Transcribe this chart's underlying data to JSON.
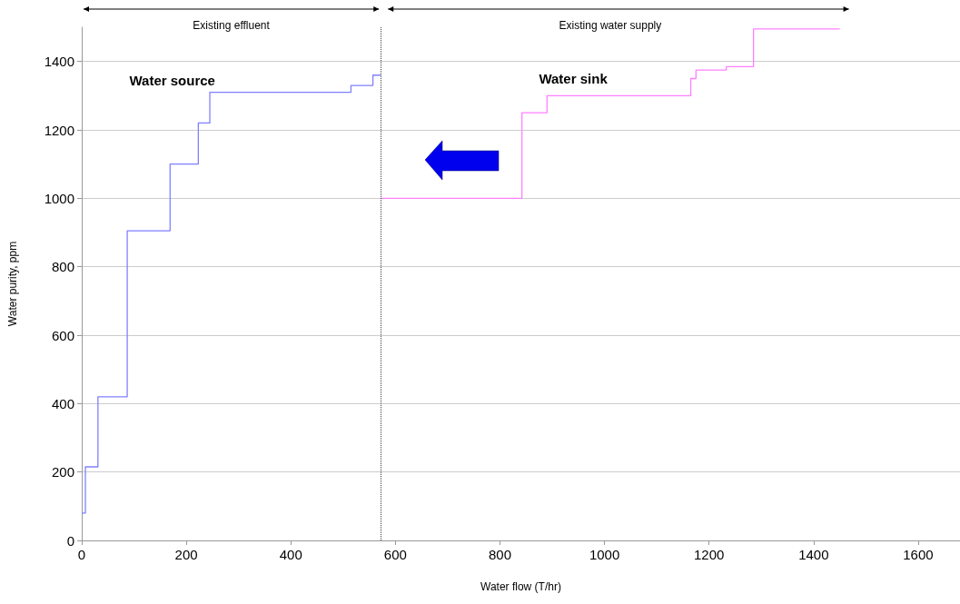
{
  "chart_data": {
    "type": "step",
    "xlabel": "Water flow (T/hr)",
    "ylabel": "Water purity, ppm",
    "series": [
      {
        "color": "#8080ff",
        "x": [
          0,
          7,
          31,
          87,
          169,
          223,
          245,
          515,
          557,
          572
        ],
        "values": [
          80,
          215,
          420,
          905,
          1100,
          1220,
          1310,
          1330,
          1360,
          1360
        ]
      },
      {
        "color": "#ff80ff",
        "x": [
          572,
          842,
          890,
          1165,
          1175,
          1233,
          1285,
          1450
        ],
        "values": [
          1000,
          1250,
          1300,
          1350,
          1375,
          1385,
          1495,
          1495
        ]
      }
    ],
    "annotations": [
      "Existing effluent",
      "Existing water supply",
      "Water source",
      "Water sink"
    ],
    "ref_lines": [
      {
        "axis": "x",
        "value": 572,
        "color": "#404040",
        "line_style": "dotted"
      }
    ],
    "xlim": [
      0,
      1680
    ],
    "xticks": [
      0,
      200,
      400,
      600,
      800,
      1000,
      1200,
      1400,
      1600
    ],
    "ylim": [
      0,
      1500
    ],
    "yticks": [
      0,
      200,
      400,
      600,
      800,
      1000,
      1200,
      1400
    ],
    "grid": "y",
    "marker": "none",
    "line_style": "solid"
  }
}
